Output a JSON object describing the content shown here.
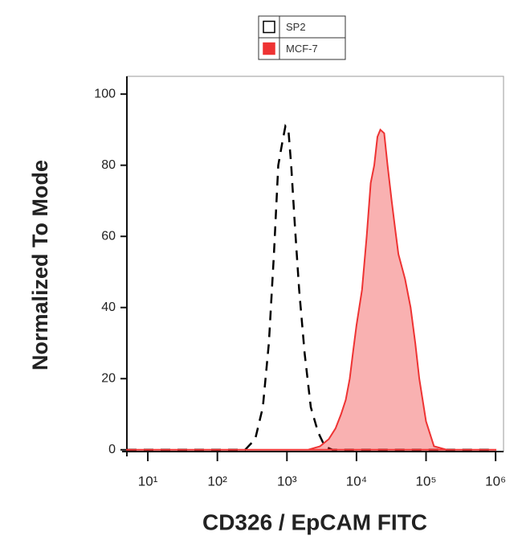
{
  "chart_data": {
    "type": "histogram-overlay",
    "x_label": "CD326 / EpCAM FITC",
    "y_label": "Normalized To Mode",
    "xlog": true,
    "xlim": [
      5,
      1300000
    ],
    "ylim": [
      -0.5,
      105
    ],
    "xticks": [
      {
        "value": 10,
        "label": "10¹"
      },
      {
        "value": 100,
        "label": "10²"
      },
      {
        "value": 1000,
        "label": "10³"
      },
      {
        "value": 10000,
        "label": "10⁴"
      },
      {
        "value": 100000,
        "label": "10⁵"
      },
      {
        "value": 1000000,
        "label": "10⁶"
      }
    ],
    "yticks": [
      0,
      20,
      40,
      60,
      80,
      100
    ],
    "legend": "top",
    "series": [
      {
        "name": "SP2",
        "color": "#000000",
        "fill": false,
        "dashed": true,
        "x": [
          5,
          100,
          250,
          350,
          450,
          550,
          650,
          750,
          850,
          950,
          1050,
          1150,
          1300,
          1500,
          1800,
          2200,
          2800,
          3500,
          4500,
          10000,
          1000000
        ],
        "values": [
          0,
          0,
          0,
          3,
          12,
          30,
          55,
          80,
          86,
          91,
          90,
          80,
          63,
          45,
          27,
          12,
          5,
          1,
          0,
          0,
          0
        ]
      },
      {
        "name": "MCF-7",
        "color": "#ee3333",
        "fill": true,
        "dashed": false,
        "x": [
          5,
          1000,
          2000,
          3000,
          4000,
          5000,
          6000,
          7000,
          8000,
          9000,
          10000,
          12000,
          14000,
          16000,
          18000,
          20000,
          22000,
          25000,
          28000,
          32000,
          36000,
          40000,
          50000,
          60000,
          70000,
          80000,
          100000,
          130000,
          200000,
          1000000
        ],
        "values": [
          0,
          0,
          0,
          1,
          3,
          6,
          10,
          14,
          20,
          28,
          35,
          45,
          60,
          75,
          80,
          88,
          90,
          89,
          80,
          70,
          62,
          55,
          48,
          40,
          30,
          20,
          8,
          1,
          0,
          0
        ]
      }
    ]
  }
}
